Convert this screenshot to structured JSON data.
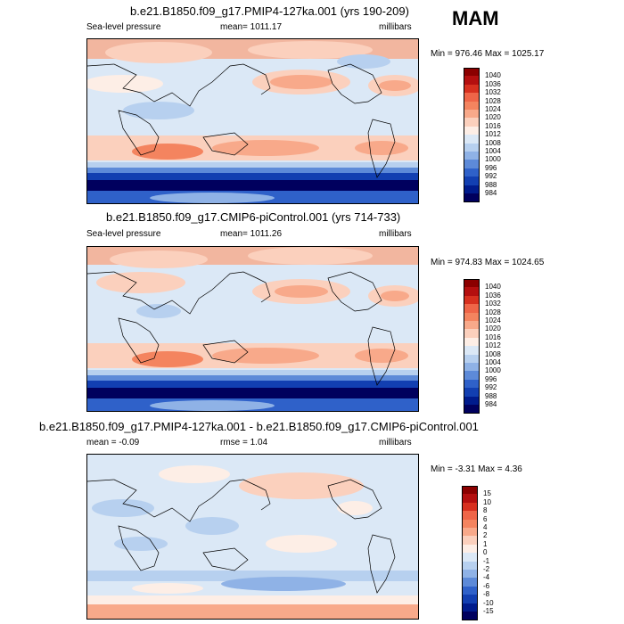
{
  "season": "MAM",
  "panels": [
    {
      "title": "b.e21.B1850.f09_g17.PMIP4-127ka.001 (yrs 190-209)",
      "variable": "Sea-level pressure",
      "mean_label": "mean= 1011.17",
      "units": "millibars",
      "minmax": "Min = 976.46 Max = 1025.17",
      "colorbar": {
        "labels": [
          "1040",
          "1036",
          "1032",
          "1028",
          "1024",
          "1020",
          "1016",
          "1012",
          "1008",
          "1004",
          "1000",
          "996",
          "992",
          "988",
          "984"
        ],
        "colors": [
          "#8b0000",
          "#b40f0f",
          "#d7301f",
          "#ef6548",
          "#f4845f",
          "#f8a98a",
          "#fbd0bd",
          "#fdeee6",
          "#dbe8f6",
          "#b7d0ef",
          "#8fb2e6",
          "#5d8ad8",
          "#2f61c9",
          "#123fb1",
          "#001b8c",
          "#00005e"
        ]
      }
    },
    {
      "title": "b.e21.B1850.f09_g17.CMIP6-piControl.001 (yrs 714-733)",
      "variable": "Sea-level pressure",
      "mean_label": "mean= 1011.26",
      "units": "millibars",
      "minmax": "Min = 974.83 Max = 1024.65",
      "colorbar": {
        "labels": [
          "1040",
          "1036",
          "1032",
          "1028",
          "1024",
          "1020",
          "1016",
          "1012",
          "1008",
          "1004",
          "1000",
          "996",
          "992",
          "988",
          "984"
        ],
        "colors": [
          "#8b0000",
          "#b40f0f",
          "#d7301f",
          "#ef6548",
          "#f4845f",
          "#f8a98a",
          "#fbd0bd",
          "#fdeee6",
          "#dbe8f6",
          "#b7d0ef",
          "#8fb2e6",
          "#5d8ad8",
          "#2f61c9",
          "#123fb1",
          "#001b8c",
          "#00005e"
        ]
      }
    },
    {
      "title": "b.e21.B1850.f09_g17.PMIP4-127ka.001 - b.e21.B1850.f09_g17.CMIP6-piControl.001",
      "mean_label": "mean =  -0.09",
      "rmse_label": "rmse =   1.04",
      "units": "millibars",
      "minmax": "Min =  -3.31 Max =   4.36",
      "colorbar": {
        "labels": [
          "15",
          "10",
          "8",
          "6",
          "4",
          "2",
          "1",
          "0",
          "-1",
          "-2",
          "-4",
          "-6",
          "-8",
          "-10",
          "-15"
        ],
        "colors": [
          "#8b0000",
          "#b40f0f",
          "#d7301f",
          "#ef6548",
          "#f4845f",
          "#f8a98a",
          "#fbd0bd",
          "#fdeee6",
          "#dbe8f6",
          "#b7d0ef",
          "#8fb2e6",
          "#5d8ad8",
          "#2f61c9",
          "#123fb1",
          "#001b8c",
          "#00005e"
        ]
      }
    }
  ]
}
